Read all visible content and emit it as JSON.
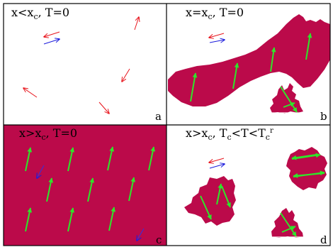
{
  "colors": {
    "domain": "#bb0a4a",
    "red_arrow": "#e8141c",
    "blue_arrow": "#1a1adc",
    "green_arrow": "#2ee62a",
    "frame": "#000000"
  },
  "panels": {
    "a": {
      "letter": "a",
      "title_main": "x<x",
      "title_sub": "c",
      "title_rest": ",  T=0"
    },
    "b": {
      "letter": "b",
      "title_main": "x=x",
      "title_sub": "c",
      "title_rest": ",  T=0"
    },
    "c": {
      "letter": "c",
      "title_main": "x>x",
      "title_sub": "c",
      "title_rest": ",  T=0"
    },
    "d": {
      "letter": "d",
      "title_main": "x>x",
      "title_sub": "c",
      "title_mid": ",  T",
      "title_sub2": "c",
      "title_mid2": "<T<T",
      "title_sub3": "c",
      "title_sup": "r"
    }
  }
}
